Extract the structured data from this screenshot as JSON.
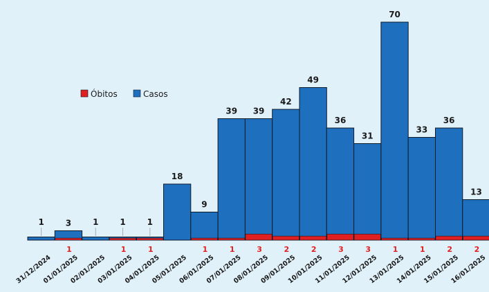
{
  "chart_data": {
    "type": "bar",
    "categories": [
      "31/12/2024",
      "01/01/2025",
      "02/01/2025",
      "03/01/2025",
      "04/01/2025",
      "05/01/2025",
      "06/01/2025",
      "07/01/2025",
      "08/01/2025",
      "09/01/2025",
      "10/01/2025",
      "11/01/2025",
      "12/01/2025",
      "13/01/2025",
      "14/01/2025",
      "15/01/2025",
      "16/01/2025"
    ],
    "series": [
      {
        "name": "Casos",
        "color": "#1f6fbf",
        "values": [
          1,
          3,
          1,
          1,
          1,
          18,
          9,
          39,
          39,
          42,
          49,
          36,
          31,
          70,
          33,
          36,
          13
        ]
      },
      {
        "name": "Óbitos",
        "color": "#e02020",
        "values": [
          0,
          1,
          0,
          1,
          1,
          0,
          1,
          1,
          3,
          2,
          2,
          3,
          3,
          1,
          1,
          2,
          2
        ]
      }
    ],
    "legend": {
      "position": "upper-left",
      "items": [
        "Óbitos",
        "Casos"
      ]
    },
    "stacked": "overlay",
    "ylim": [
      0,
      70
    ],
    "grid": false
  }
}
